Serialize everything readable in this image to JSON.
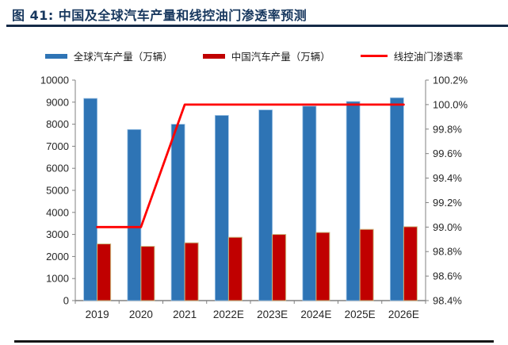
{
  "figure": {
    "title": "图 41: 中国及全球汽车产量和线控油门渗透率预测"
  },
  "legend": [
    {
      "label": "全球汽车产量（万辆）",
      "type": "bar",
      "color": "#2E74B5"
    },
    {
      "label": "中国汽车产量（万辆）",
      "type": "bar",
      "color": "#C00000"
    },
    {
      "label": "线控油门渗透率",
      "type": "line",
      "color": "#FF0000"
    }
  ],
  "chart_data": {
    "type": "bar",
    "subtype": "grouped bars with line on secondary axis",
    "title": "中国及全球汽车产量和线控油门渗透率预测",
    "categories": [
      "2019",
      "2020",
      "2021",
      "2022E",
      "2023E",
      "2024E",
      "2025E",
      "2026E"
    ],
    "series": [
      {
        "name": "全球汽车产量（万辆）",
        "type": "bar",
        "axis": "left",
        "color": "#2E74B5",
        "border": "#9DC3E6",
        "values": [
          9170,
          7760,
          8000,
          8400,
          8650,
          8820,
          9030,
          9200
        ]
      },
      {
        "name": "中国汽车产量（万辆）",
        "type": "bar",
        "axis": "left",
        "color": "#C00000",
        "border": "#CBB97E",
        "values": [
          2570,
          2460,
          2620,
          2870,
          3000,
          3090,
          3230,
          3350
        ]
      },
      {
        "name": "线控油门渗透率",
        "type": "line",
        "axis": "right",
        "color": "#FF0000",
        "values": [
          99.0,
          99.0,
          100.0,
          100.0,
          100.0,
          100.0,
          100.0,
          100.0
        ]
      }
    ],
    "left_axis": {
      "min": 0,
      "max": 10000,
      "step": 1000,
      "tick_labels": [
        "0",
        "1000",
        "2000",
        "3000",
        "4000",
        "5000",
        "6000",
        "7000",
        "8000",
        "9000",
        "10000"
      ]
    },
    "right_axis": {
      "min": 98.4,
      "max": 100.2,
      "step": 0.2,
      "format": "percent",
      "tick_labels": [
        "98.4%",
        "98.6%",
        "98.8%",
        "99.0%",
        "99.2%",
        "99.4%",
        "99.6%",
        "99.8%",
        "100.0%",
        "100.2%"
      ]
    },
    "grid": false,
    "legend_position": "top",
    "axis_color": "#808080",
    "tick_label_color": "#262626"
  }
}
